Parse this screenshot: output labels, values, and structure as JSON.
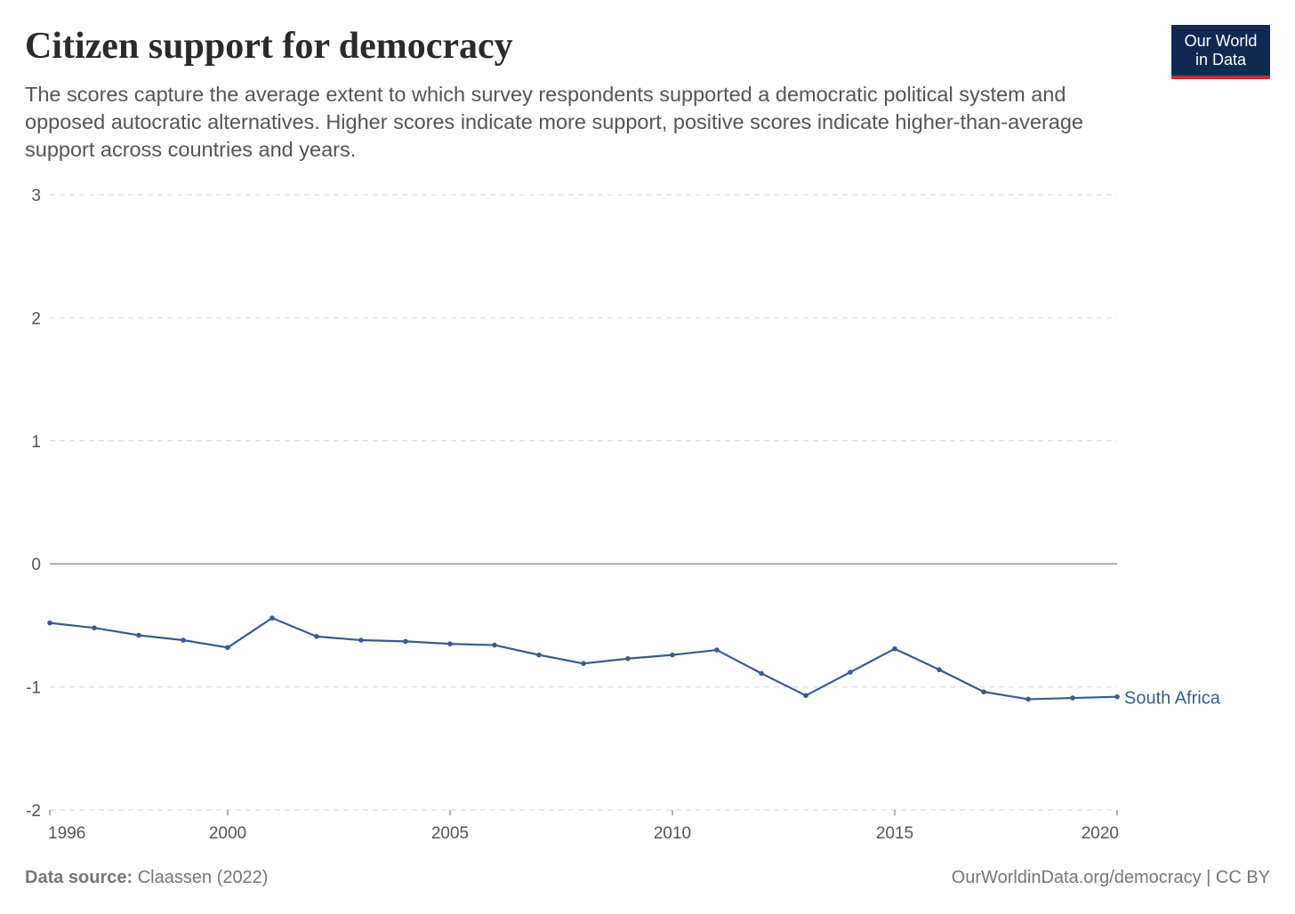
{
  "logo": {
    "line1": "Our World",
    "line2": "in Data"
  },
  "footer": {
    "source_label": "Data source:",
    "source": "Claassen (2022)",
    "credit": "OurWorldinData.org/democracy | CC BY"
  },
  "chart_data": {
    "type": "line",
    "title": "Citizen support for democracy",
    "subtitle": "The scores capture the average extent to which survey respondents supported a democratic political system and opposed autocratic alternatives. Higher scores indicate more support, positive scores indicate higher-than-average support across countries and years.",
    "xlabel": "",
    "ylabel": "",
    "xlim": [
      1996,
      2020
    ],
    "ylim": [
      -2,
      3
    ],
    "x_ticks": [
      1996,
      2000,
      2005,
      2010,
      2015,
      2020
    ],
    "y_ticks": [
      -2,
      -1,
      0,
      1,
      2,
      3
    ],
    "grid": "horizontal dashed",
    "legend": "end-of-line label",
    "x": [
      1996,
      1997,
      1998,
      1999,
      2000,
      2001,
      2002,
      2003,
      2004,
      2005,
      2006,
      2007,
      2008,
      2009,
      2010,
      2011,
      2012,
      2013,
      2014,
      2015,
      2016,
      2017,
      2018,
      2019,
      2020
    ],
    "series": [
      {
        "name": "South Africa",
        "color": "#3c5a8f",
        "values": [
          -0.48,
          -0.52,
          -0.58,
          -0.62,
          -0.68,
          -0.44,
          -0.59,
          -0.62,
          -0.63,
          -0.65,
          -0.66,
          -0.74,
          -0.81,
          -0.77,
          -0.74,
          -0.7,
          -0.89,
          -1.07,
          -0.88,
          -0.69,
          -0.86,
          -1.04,
          -1.1,
          -1.09,
          -1.08
        ]
      }
    ]
  }
}
